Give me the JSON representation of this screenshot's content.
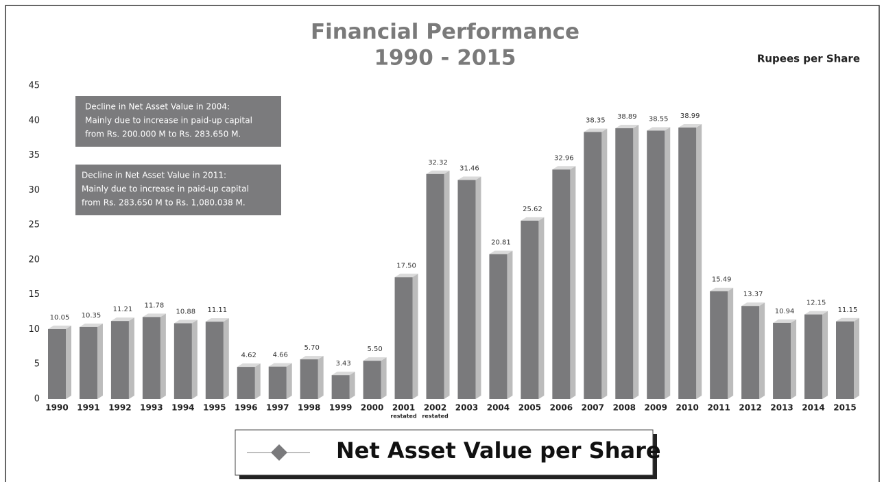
{
  "chart_data": {
    "type": "bar",
    "title": "Financial Performance",
    "subtitle": "1990 - 2015",
    "unit_label": "Rupees per Share",
    "categories": [
      "1990",
      "1991",
      "1992",
      "1993",
      "1994",
      "1995",
      "1996",
      "1997",
      "1998",
      "1999",
      "2000",
      "2001",
      "2002",
      "2003",
      "2004",
      "2005",
      "2006",
      "2007",
      "2008",
      "2009",
      "2010",
      "2011",
      "2012",
      "2013",
      "2014",
      "2015"
    ],
    "category_notes": [
      null,
      null,
      null,
      null,
      null,
      null,
      null,
      null,
      null,
      null,
      null,
      "restated",
      "restated",
      null,
      null,
      null,
      null,
      null,
      null,
      null,
      null,
      null,
      null,
      null,
      null,
      null
    ],
    "series": [
      {
        "name": "Net Asset Value per Share",
        "color": "#7a7a7c",
        "values": [
          10.05,
          10.35,
          11.21,
          11.78,
          10.88,
          11.11,
          4.62,
          4.66,
          5.7,
          3.43,
          5.5,
          17.5,
          32.32,
          31.46,
          20.81,
          25.62,
          32.96,
          38.35,
          38.89,
          38.55,
          38.99,
          15.49,
          13.37,
          10.94,
          12.15,
          11.15
        ],
        "value_labels": [
          "10.05",
          "10.35",
          "11.21",
          "11.78",
          "10.88",
          "11.11",
          "4.62",
          "4.66",
          "5.70",
          "3.43",
          "5.50",
          "17.50",
          "32.32",
          "31.46",
          "20.81",
          "25.62",
          "32.96",
          "38.35",
          "38.89",
          "38.55",
          "38.99",
          "15.49",
          "13.37",
          "10.94",
          "12.15",
          "11.15"
        ]
      }
    ],
    "ylim": [
      0,
      45
    ],
    "yticks": [
      0,
      5,
      10,
      15,
      20,
      25,
      30,
      35,
      40,
      45
    ],
    "grid": false,
    "annotations": [
      {
        "lines": [
          "Decline in Net Asset Value in 2004:",
          "Mainly due to increase in paid-up capital",
          "from Rs. 200.000 M to Rs. 283.650 M."
        ]
      },
      {
        "lines": [
          "Decline in Net Asset Value in 2011:",
          "Mainly due to increase in paid-up capital",
          "from Rs. 283.650 M to Rs. 1,080.038 M."
        ]
      }
    ]
  }
}
